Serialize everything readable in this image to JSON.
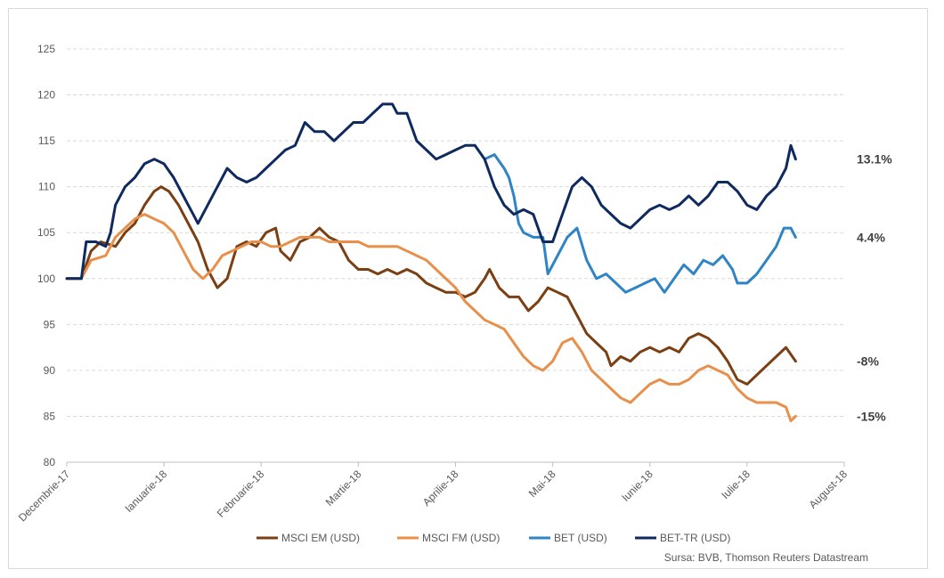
{
  "chart_data": {
    "type": "line",
    "title": "",
    "xlabel": "",
    "ylabel": "",
    "ylim": [
      80,
      125
    ],
    "yticks": [
      80,
      85,
      90,
      95,
      100,
      105,
      110,
      115,
      120,
      125
    ],
    "grid": true,
    "legend_position": "bottom",
    "x_labels": [
      "Decembrie-17",
      "Ianuarie-18",
      "Februarie-18",
      "Martie-18",
      "Aprilie-18",
      "Mai-18",
      "Iunie-18",
      "Iulie-18",
      "August-18"
    ],
    "x_range": [
      0,
      8
    ],
    "source": "Sursa: BVB, Thomson Reuters Datastream",
    "colors": {
      "MSCI EM (USD)": "#7b3f14",
      "MSCI FM (USD)": "#e8904a",
      "BET (USD)": "#2e84c4",
      "BET-TR (USD)": "#0e2a5e"
    },
    "series": [
      {
        "name": "MSCI EM (USD)",
        "end_label": "-8%",
        "points": [
          [
            0,
            100
          ],
          [
            0.15,
            100
          ],
          [
            0.25,
            103
          ],
          [
            0.35,
            104
          ],
          [
            0.5,
            103.5
          ],
          [
            0.6,
            105
          ],
          [
            0.7,
            106
          ],
          [
            0.8,
            108
          ],
          [
            0.9,
            109.5
          ],
          [
            0.97,
            110
          ],
          [
            1.05,
            109.5
          ],
          [
            1.15,
            108
          ],
          [
            1.25,
            106
          ],
          [
            1.35,
            104
          ],
          [
            1.45,
            101
          ],
          [
            1.55,
            99
          ],
          [
            1.65,
            100
          ],
          [
            1.75,
            103.5
          ],
          [
            1.85,
            104
          ],
          [
            1.95,
            103.5
          ],
          [
            2.05,
            105
          ],
          [
            2.15,
            105.5
          ],
          [
            2.2,
            103
          ],
          [
            2.3,
            102
          ],
          [
            2.4,
            104
          ],
          [
            2.5,
            104.5
          ],
          [
            2.6,
            105.5
          ],
          [
            2.7,
            104.5
          ],
          [
            2.8,
            104
          ],
          [
            2.9,
            102
          ],
          [
            3.0,
            101
          ],
          [
            3.1,
            101
          ],
          [
            3.2,
            100.5
          ],
          [
            3.3,
            101
          ],
          [
            3.4,
            100.5
          ],
          [
            3.5,
            101
          ],
          [
            3.6,
            100.5
          ],
          [
            3.7,
            99.5
          ],
          [
            3.8,
            99
          ],
          [
            3.9,
            98.5
          ],
          [
            4.0,
            98.5
          ],
          [
            4.1,
            98
          ],
          [
            4.2,
            98.5
          ],
          [
            4.3,
            100
          ],
          [
            4.35,
            101
          ],
          [
            4.45,
            99
          ],
          [
            4.55,
            98
          ],
          [
            4.65,
            98
          ],
          [
            4.75,
            96.5
          ],
          [
            4.85,
            97.5
          ],
          [
            4.95,
            99
          ],
          [
            5.05,
            98.5
          ],
          [
            5.15,
            98
          ],
          [
            5.25,
            96
          ],
          [
            5.35,
            94
          ],
          [
            5.45,
            93
          ],
          [
            5.55,
            92
          ],
          [
            5.6,
            90.5
          ],
          [
            5.7,
            91.5
          ],
          [
            5.8,
            91
          ],
          [
            5.9,
            92
          ],
          [
            6.0,
            92.5
          ],
          [
            6.1,
            92
          ],
          [
            6.2,
            92.5
          ],
          [
            6.3,
            92
          ],
          [
            6.4,
            93.5
          ],
          [
            6.5,
            94
          ],
          [
            6.6,
            93.5
          ],
          [
            6.7,
            92.5
          ],
          [
            6.8,
            91
          ],
          [
            6.9,
            89
          ],
          [
            7.0,
            88.5
          ],
          [
            7.1,
            89.5
          ],
          [
            7.2,
            90.5
          ],
          [
            7.3,
            91.5
          ],
          [
            7.4,
            92.5
          ],
          [
            7.5,
            91
          ]
        ]
      },
      {
        "name": "MSCI FM (USD)",
        "end_label": "-15%",
        "points": [
          [
            0,
            100
          ],
          [
            0.15,
            100
          ],
          [
            0.25,
            102
          ],
          [
            0.4,
            102.5
          ],
          [
            0.5,
            104.5
          ],
          [
            0.6,
            105.5
          ],
          [
            0.7,
            106.5
          ],
          [
            0.8,
            107
          ],
          [
            0.9,
            106.5
          ],
          [
            1.0,
            106
          ],
          [
            1.1,
            105
          ],
          [
            1.2,
            103
          ],
          [
            1.3,
            101
          ],
          [
            1.4,
            100
          ],
          [
            1.5,
            101
          ],
          [
            1.6,
            102.5
          ],
          [
            1.7,
            103
          ],
          [
            1.8,
            103.5
          ],
          [
            1.9,
            104
          ],
          [
            2.0,
            104
          ],
          [
            2.1,
            103.5
          ],
          [
            2.2,
            103.5
          ],
          [
            2.3,
            104
          ],
          [
            2.4,
            104.5
          ],
          [
            2.5,
            104.5
          ],
          [
            2.6,
            104.5
          ],
          [
            2.7,
            104
          ],
          [
            2.8,
            104
          ],
          [
            2.9,
            104
          ],
          [
            3.0,
            104
          ],
          [
            3.1,
            103.5
          ],
          [
            3.2,
            103.5
          ],
          [
            3.3,
            103.5
          ],
          [
            3.4,
            103.5
          ],
          [
            3.5,
            103
          ],
          [
            3.6,
            102.5
          ],
          [
            3.7,
            102
          ],
          [
            3.8,
            101
          ],
          [
            3.9,
            100
          ],
          [
            4.0,
            99
          ],
          [
            4.1,
            97.5
          ],
          [
            4.2,
            96.5
          ],
          [
            4.3,
            95.5
          ],
          [
            4.4,
            95
          ],
          [
            4.5,
            94.5
          ],
          [
            4.6,
            93
          ],
          [
            4.7,
            91.5
          ],
          [
            4.8,
            90.5
          ],
          [
            4.9,
            90
          ],
          [
            5.0,
            91
          ],
          [
            5.1,
            93
          ],
          [
            5.2,
            93.5
          ],
          [
            5.3,
            92
          ],
          [
            5.4,
            90
          ],
          [
            5.5,
            89
          ],
          [
            5.6,
            88
          ],
          [
            5.7,
            87
          ],
          [
            5.8,
            86.5
          ],
          [
            5.9,
            87.5
          ],
          [
            6.0,
            88.5
          ],
          [
            6.1,
            89
          ],
          [
            6.2,
            88.5
          ],
          [
            6.3,
            88.5
          ],
          [
            6.4,
            89
          ],
          [
            6.5,
            90
          ],
          [
            6.6,
            90.5
          ],
          [
            6.7,
            90
          ],
          [
            6.8,
            89.5
          ],
          [
            6.9,
            88
          ],
          [
            7.0,
            87
          ],
          [
            7.1,
            86.5
          ],
          [
            7.2,
            86.5
          ],
          [
            7.3,
            86.5
          ],
          [
            7.4,
            86
          ],
          [
            7.45,
            84.5
          ],
          [
            7.5,
            85
          ]
        ]
      },
      {
        "name": "BET (USD)",
        "end_label": "4.4%",
        "points": [
          [
            4.3,
            113
          ],
          [
            4.4,
            113.5
          ],
          [
            4.5,
            112
          ],
          [
            4.55,
            111
          ],
          [
            4.6,
            109
          ],
          [
            4.65,
            106
          ],
          [
            4.7,
            105
          ],
          [
            4.8,
            104.5
          ],
          [
            4.9,
            104.5
          ],
          [
            4.95,
            100.5
          ],
          [
            5.05,
            102.5
          ],
          [
            5.15,
            104.5
          ],
          [
            5.25,
            105.5
          ],
          [
            5.35,
            102
          ],
          [
            5.45,
            100
          ],
          [
            5.55,
            100.5
          ],
          [
            5.65,
            99.5
          ],
          [
            5.75,
            98.5
          ],
          [
            5.85,
            99
          ],
          [
            5.95,
            99.5
          ],
          [
            6.05,
            100
          ],
          [
            6.15,
            98.5
          ],
          [
            6.25,
            100
          ],
          [
            6.35,
            101.5
          ],
          [
            6.45,
            100.5
          ],
          [
            6.55,
            102
          ],
          [
            6.65,
            101.5
          ],
          [
            6.75,
            102.5
          ],
          [
            6.85,
            101
          ],
          [
            6.9,
            99.5
          ],
          [
            7.0,
            99.5
          ],
          [
            7.1,
            100.5
          ],
          [
            7.2,
            102
          ],
          [
            7.3,
            103.5
          ],
          [
            7.38,
            105.5
          ],
          [
            7.45,
            105.5
          ],
          [
            7.5,
            104.5
          ]
        ]
      },
      {
        "name": "BET-TR (USD)",
        "end_label": "13.1%",
        "points": [
          [
            0,
            100
          ],
          [
            0.15,
            100
          ],
          [
            0.2,
            104
          ],
          [
            0.3,
            104
          ],
          [
            0.4,
            103.5
          ],
          [
            0.45,
            105
          ],
          [
            0.5,
            108
          ],
          [
            0.6,
            110
          ],
          [
            0.7,
            111
          ],
          [
            0.8,
            112.5
          ],
          [
            0.9,
            113
          ],
          [
            1.0,
            112.5
          ],
          [
            1.1,
            111
          ],
          [
            1.2,
            109
          ],
          [
            1.3,
            107
          ],
          [
            1.35,
            106
          ],
          [
            1.45,
            108
          ],
          [
            1.55,
            110
          ],
          [
            1.65,
            112
          ],
          [
            1.75,
            111
          ],
          [
            1.85,
            110.5
          ],
          [
            1.95,
            111
          ],
          [
            2.05,
            112
          ],
          [
            2.15,
            113
          ],
          [
            2.25,
            114
          ],
          [
            2.35,
            114.5
          ],
          [
            2.45,
            117
          ],
          [
            2.55,
            116
          ],
          [
            2.65,
            116
          ],
          [
            2.75,
            115
          ],
          [
            2.85,
            116
          ],
          [
            2.95,
            117
          ],
          [
            3.05,
            117
          ],
          [
            3.15,
            118
          ],
          [
            3.25,
            119
          ],
          [
            3.35,
            119
          ],
          [
            3.4,
            118
          ],
          [
            3.5,
            118
          ],
          [
            3.6,
            115
          ],
          [
            3.7,
            114
          ],
          [
            3.8,
            113
          ],
          [
            3.9,
            113.5
          ],
          [
            4.0,
            114
          ],
          [
            4.1,
            114.5
          ],
          [
            4.2,
            114.5
          ],
          [
            4.3,
            113
          ],
          [
            4.4,
            110
          ],
          [
            4.5,
            108
          ],
          [
            4.6,
            107
          ],
          [
            4.7,
            107.5
          ],
          [
            4.8,
            107
          ],
          [
            4.9,
            104
          ],
          [
            5.0,
            104
          ],
          [
            5.1,
            107
          ],
          [
            5.2,
            110
          ],
          [
            5.3,
            111
          ],
          [
            5.4,
            110
          ],
          [
            5.5,
            108
          ],
          [
            5.6,
            107
          ],
          [
            5.7,
            106
          ],
          [
            5.8,
            105.5
          ],
          [
            5.9,
            106.5
          ],
          [
            6.0,
            107.5
          ],
          [
            6.1,
            108
          ],
          [
            6.2,
            107.5
          ],
          [
            6.3,
            108
          ],
          [
            6.4,
            109
          ],
          [
            6.5,
            108
          ],
          [
            6.6,
            109
          ],
          [
            6.7,
            110.5
          ],
          [
            6.8,
            110.5
          ],
          [
            6.9,
            109.5
          ],
          [
            7.0,
            108
          ],
          [
            7.1,
            107.5
          ],
          [
            7.2,
            109
          ],
          [
            7.3,
            110
          ],
          [
            7.4,
            112
          ],
          [
            7.45,
            114.5
          ],
          [
            7.5,
            113
          ]
        ]
      }
    ]
  }
}
